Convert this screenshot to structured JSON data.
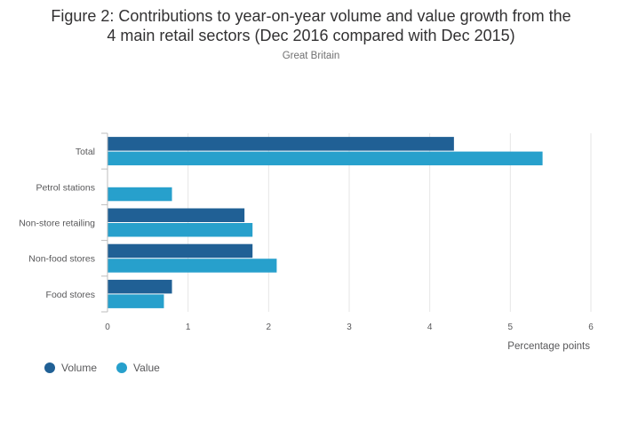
{
  "title": {
    "line1": "Figure 2: Contributions to year-on-year volume and value growth from the",
    "line2": "4 main retail sectors (Dec 2016 compared with Dec 2015)"
  },
  "subtitle": "Great Britain",
  "chart_data": {
    "type": "bar",
    "orientation": "horizontal",
    "categories": [
      "Total",
      "Petrol stations",
      "Non-store retailing",
      "Non-food stores",
      "Food stores"
    ],
    "series": [
      {
        "name": "Volume",
        "color": "#206095",
        "values": [
          4.3,
          null,
          1.7,
          1.8,
          0.8
        ]
      },
      {
        "name": "Value",
        "color": "#27a0cc",
        "values": [
          5.4,
          0.8,
          1.8,
          2.1,
          0.7
        ]
      }
    ],
    "xlabel": "Percentage points",
    "xlim": [
      0,
      6
    ],
    "xticks": [
      "0",
      "1",
      "2",
      "3",
      "4",
      "5",
      "6"
    ],
    "grid": true,
    "legend_position": "bottom-left"
  }
}
